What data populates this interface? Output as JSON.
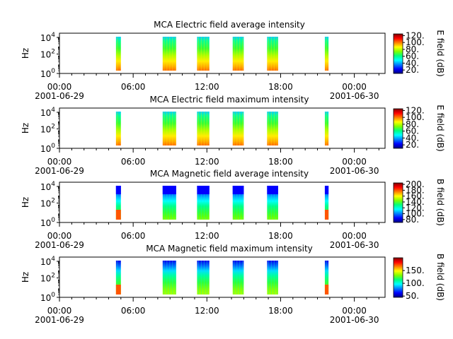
{
  "colors": {
    "colormap": [
      "#00007f",
      "#0000ff",
      "#007fff",
      "#00ffff",
      "#00ff7f",
      "#7fff00",
      "#ffff00",
      "#ff7f00",
      "#ff0000",
      "#7f0000"
    ],
    "axis": "#000000",
    "background": "#ffffff"
  },
  "time_axis": {
    "ticks": [
      "00:00",
      "06:00",
      "12:00",
      "18:00",
      "00:00"
    ],
    "start_date": "2001-06-29",
    "end_date": "2001-06-30"
  },
  "chart_data": [
    {
      "type": "heatmap",
      "title": "MCA  Electric field average intensity",
      "ylabel": "Hz",
      "ylog": true,
      "yticks": [
        "10^0",
        "10^2",
        "10^4"
      ],
      "xlim_hours": [
        0,
        26.5
      ],
      "colorbar": {
        "label": "E field (dB)",
        "ticks": [
          20,
          40,
          60,
          80,
          100,
          120
        ],
        "range": [
          10,
          125
        ]
      },
      "bursts": [
        {
          "start_hour": 4.6,
          "end_hour": 5.0,
          "pattern": "electric"
        },
        {
          "start_hour": 8.4,
          "end_hour": 9.5,
          "pattern": "electric"
        },
        {
          "start_hour": 11.2,
          "end_hour": 12.2,
          "pattern": "electric"
        },
        {
          "start_hour": 14.1,
          "end_hour": 15.0,
          "pattern": "electric"
        },
        {
          "start_hour": 16.9,
          "end_hour": 17.8,
          "pattern": "electric"
        },
        {
          "start_hour": 21.6,
          "end_hour": 21.9,
          "pattern": "electric"
        }
      ]
    },
    {
      "type": "heatmap",
      "title": "MCA  Electric field maximum intensity",
      "ylabel": "Hz",
      "ylog": true,
      "yticks": [
        "10^0",
        "10^2",
        "10^4"
      ],
      "xlim_hours": [
        0,
        26.5
      ],
      "colorbar": {
        "label": "E field (dB)",
        "ticks": [
          20,
          40,
          60,
          80,
          100,
          120
        ],
        "range": [
          10,
          125
        ]
      },
      "bursts": [
        {
          "start_hour": 4.6,
          "end_hour": 5.0,
          "pattern": "electric"
        },
        {
          "start_hour": 8.4,
          "end_hour": 9.5,
          "pattern": "electric"
        },
        {
          "start_hour": 11.2,
          "end_hour": 12.2,
          "pattern": "electric"
        },
        {
          "start_hour": 14.1,
          "end_hour": 15.0,
          "pattern": "electric"
        },
        {
          "start_hour": 16.9,
          "end_hour": 17.8,
          "pattern": "electric"
        },
        {
          "start_hour": 21.6,
          "end_hour": 21.9,
          "pattern": "electric"
        }
      ]
    },
    {
      "type": "heatmap",
      "title": "MCA  Magnetic field average intensity",
      "ylabel": "Hz",
      "ylog": true,
      "yticks": [
        "10^0",
        "10^2",
        "10^4"
      ],
      "xlim_hours": [
        0,
        26.5
      ],
      "colorbar": {
        "label": "B field (dB)",
        "ticks": [
          80,
          100,
          120,
          140,
          160,
          180,
          200
        ],
        "range": [
          70,
          205
        ]
      },
      "bursts": [
        {
          "start_hour": 4.6,
          "end_hour": 5.0,
          "pattern": "magnetic"
        },
        {
          "start_hour": 8.4,
          "end_hour": 9.5,
          "pattern": "magnetic"
        },
        {
          "start_hour": 11.2,
          "end_hour": 12.2,
          "pattern": "magnetic"
        },
        {
          "start_hour": 14.1,
          "end_hour": 15.0,
          "pattern": "magnetic"
        },
        {
          "start_hour": 16.9,
          "end_hour": 17.8,
          "pattern": "magnetic"
        },
        {
          "start_hour": 21.6,
          "end_hour": 21.9,
          "pattern": "magnetic"
        }
      ]
    },
    {
      "type": "heatmap",
      "title": "MCA  Magnetic field maximum intensity",
      "ylabel": "Hz",
      "ylog": true,
      "yticks": [
        "10^0",
        "10^2",
        "10^4"
      ],
      "xlim_hours": [
        0,
        26.5
      ],
      "colorbar": {
        "label": "B field (dB)",
        "ticks": [
          50,
          100,
          150
        ],
        "range": [
          45,
          200
        ]
      },
      "bursts": [
        {
          "start_hour": 4.6,
          "end_hour": 5.0,
          "pattern": "magnetic"
        },
        {
          "start_hour": 8.4,
          "end_hour": 9.5,
          "pattern": "magnetic"
        },
        {
          "start_hour": 11.2,
          "end_hour": 12.2,
          "pattern": "magnetic"
        },
        {
          "start_hour": 14.1,
          "end_hour": 15.0,
          "pattern": "magnetic"
        },
        {
          "start_hour": 16.9,
          "end_hour": 17.8,
          "pattern": "magnetic"
        },
        {
          "start_hour": 21.6,
          "end_hour": 21.9,
          "pattern": "magnetic"
        }
      ]
    }
  ]
}
